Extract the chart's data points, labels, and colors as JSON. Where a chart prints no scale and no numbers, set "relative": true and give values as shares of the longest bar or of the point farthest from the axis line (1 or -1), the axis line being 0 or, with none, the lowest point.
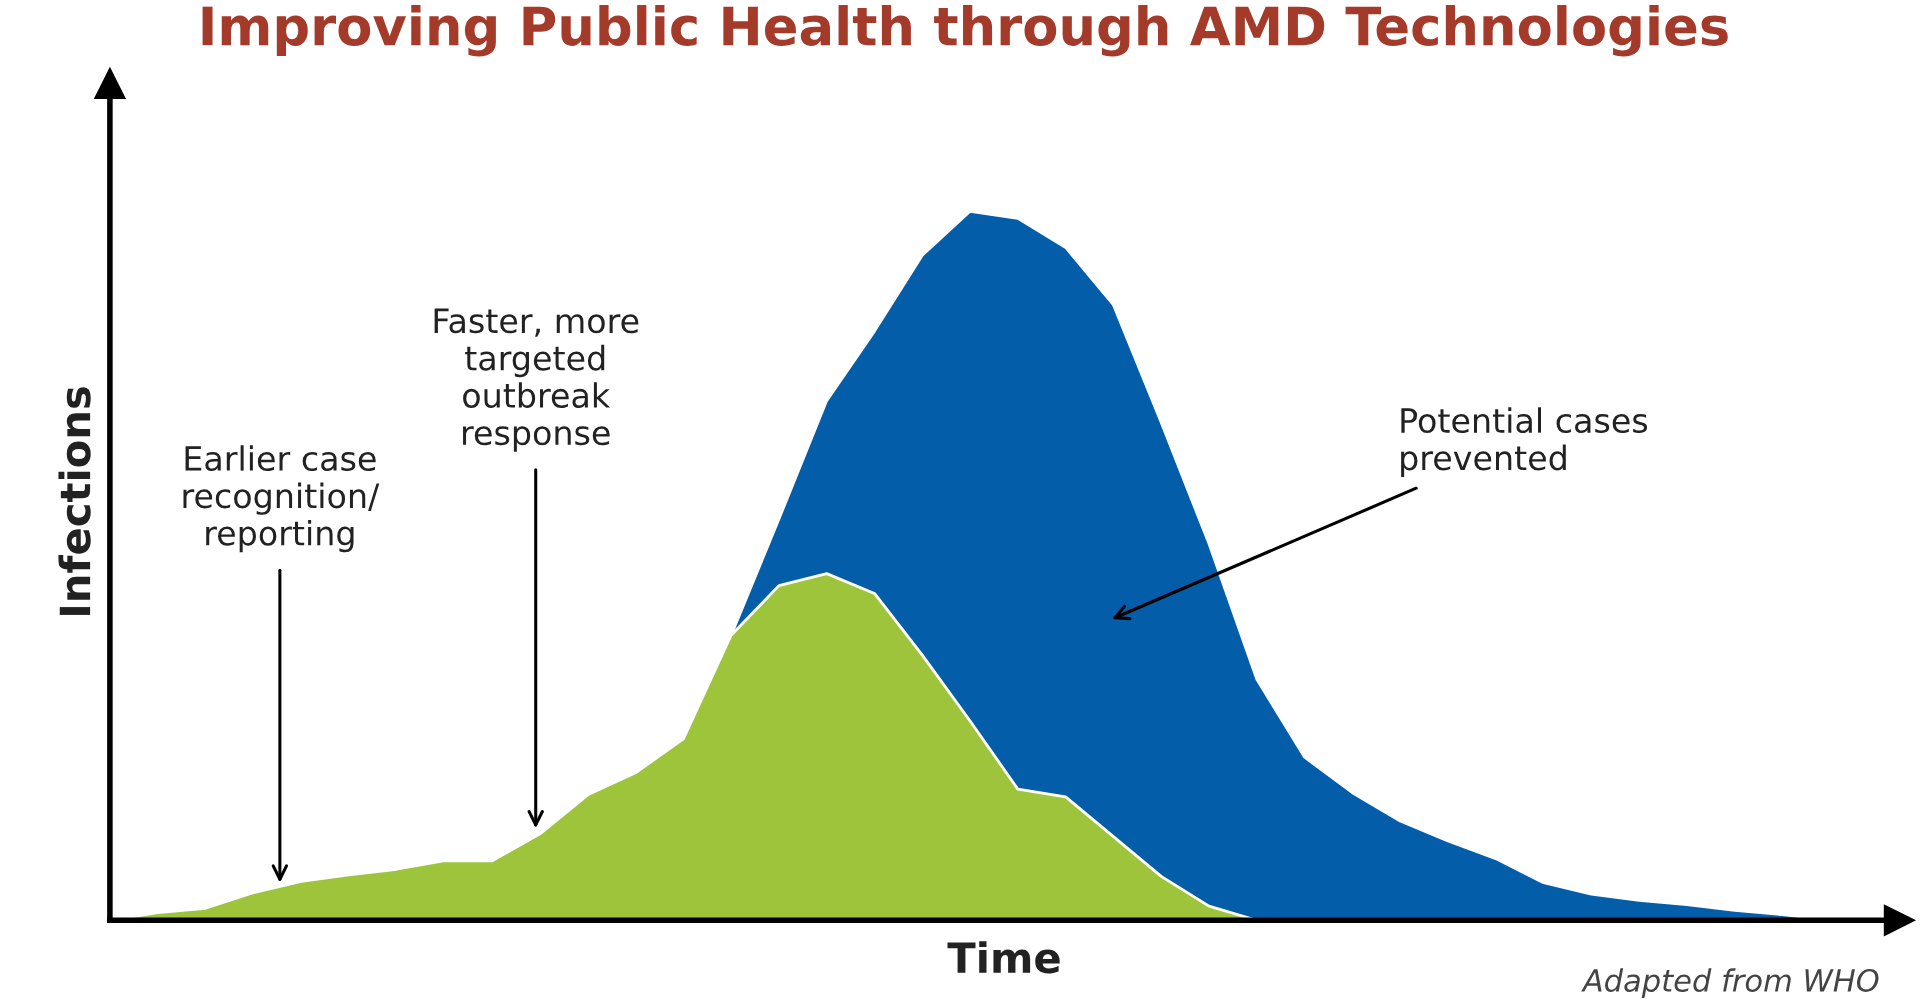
{
  "chart_data": {
    "type": "area",
    "title": "Improving Public Health through AMD Technologies",
    "xlabel": "Time",
    "ylabel": "Infections",
    "relative": true,
    "categories": [
      null,
      null,
      null,
      null,
      null,
      null,
      null,
      null,
      null,
      null,
      null,
      null,
      null,
      null,
      null,
      null,
      null,
      null,
      null,
      null,
      null,
      null,
      null,
      null,
      null,
      null,
      null,
      null,
      null,
      null,
      null,
      null,
      null,
      null,
      null,
      null,
      null
    ],
    "series": [
      {
        "color": "#045da8",
        "values": [
          0,
          0.011,
          0.017,
          0.039,
          0.055,
          0.064,
          0.072,
          0.084,
          0.084,
          0.122,
          0.177,
          0.208,
          0.256,
          0.402,
          0.566,
          0.733,
          0.831,
          0.938,
          1,
          0.99,
          0.949,
          0.868,
          0.702,
          0.531,
          0.34,
          0.23,
          0.18,
          0.14,
          0.112,
          0.087,
          0.053,
          0.037,
          0.028,
          0.022,
          0.014,
          0.008,
          0
        ]
      },
      {
        "color": "#9dc43b",
        "values": [
          0,
          0.011,
          0.017,
          0.039,
          0.055,
          0.064,
          0.072,
          0.084,
          0.084,
          0.122,
          0.177,
          0.208,
          0.256,
          0.402,
          0.472,
          0.489,
          0.461,
          0.374,
          0.281,
          0.185,
          0.174,
          0.118,
          0.062,
          0.02,
          0,
          0,
          0,
          0,
          0,
          0,
          0,
          0,
          0,
          0,
          0,
          0,
          0
        ]
      }
    ],
    "annotations": [
      "Earlier case\nrecognition/\nreporting",
      "Faster, more\ntargeted\noutbreak\nresponse",
      "Potential cases\nprevented",
      "Adapted from WHO"
    ]
  }
}
